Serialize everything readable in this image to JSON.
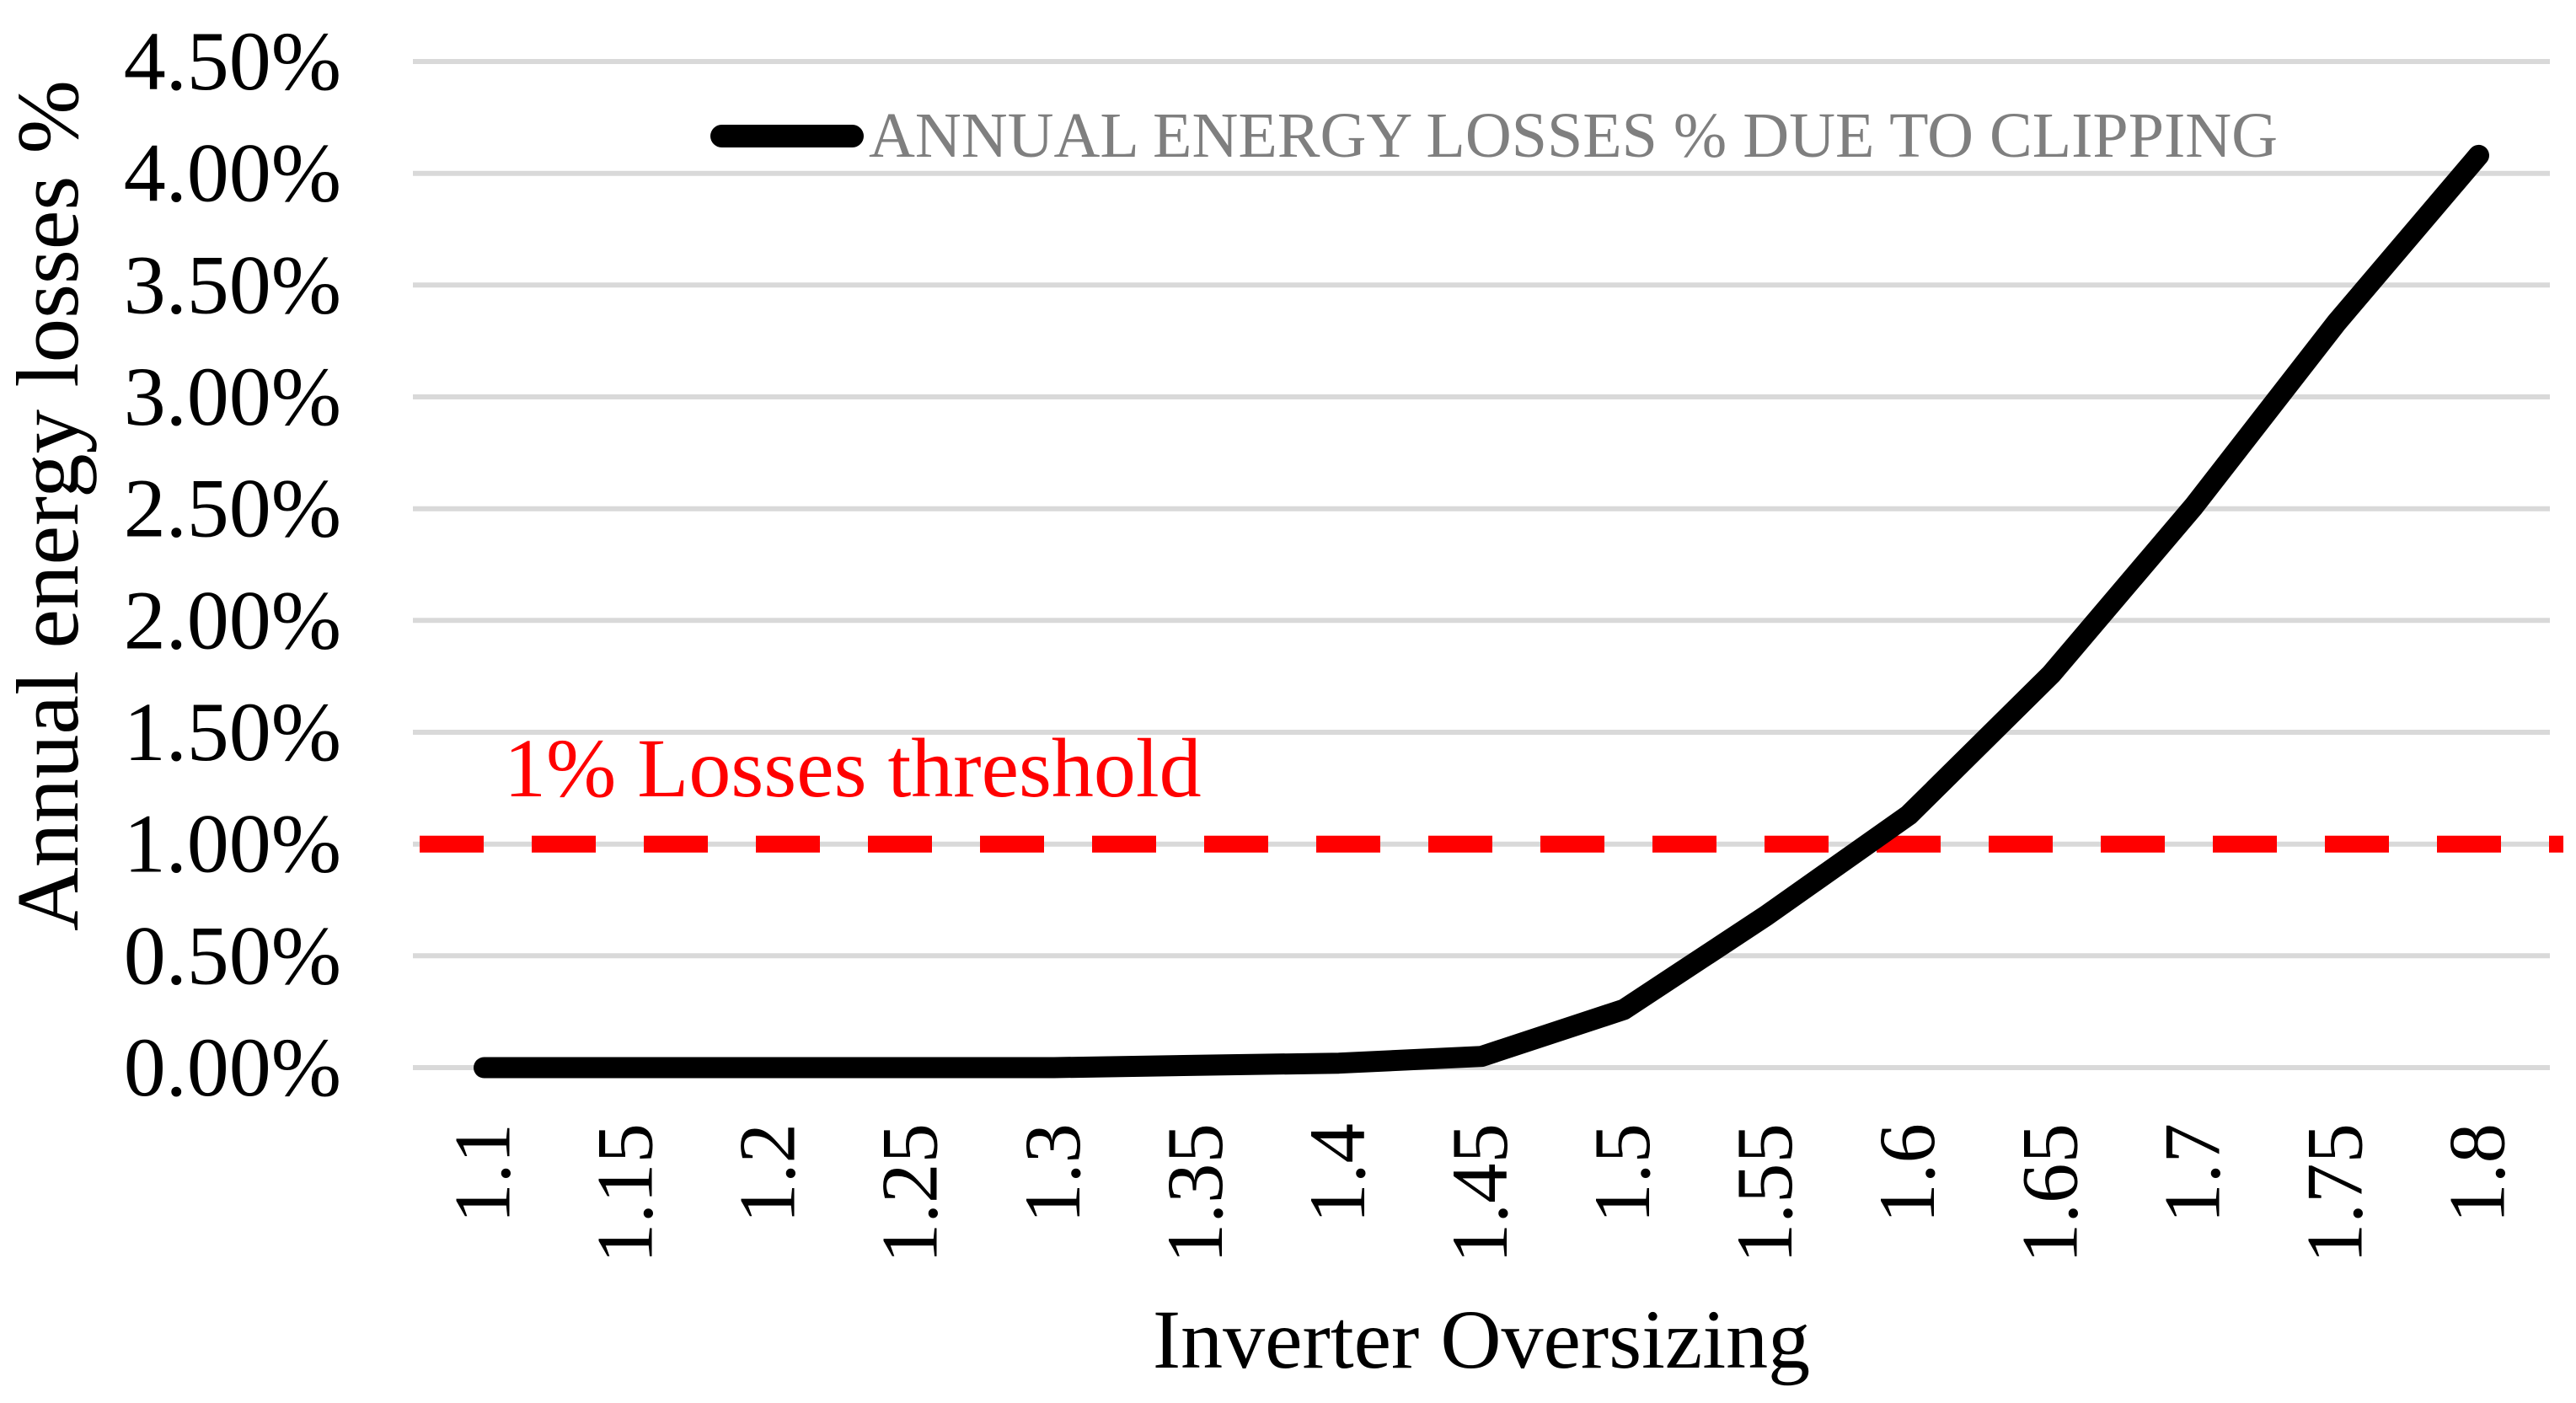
{
  "chart_data": {
    "type": "line",
    "title": "",
    "xlabel": "Inverter Oversizing",
    "ylabel": "Annual energy losses %",
    "categories": [
      "1.1",
      "1.15",
      "1.2",
      "1.25",
      "1.3",
      "1.35",
      "1.4",
      "1.45",
      "1.5",
      "1.55",
      "1.6",
      "1.65",
      "1.7",
      "1.75",
      "1.8"
    ],
    "series": [
      {
        "name": "ANNUAL ENERGY LOSSES % DUE TO CLIPPING",
        "color": "#000000",
        "values_pct": [
          0.0,
          0.0,
          0.0,
          0.0,
          0.0,
          0.01,
          0.02,
          0.05,
          0.26,
          0.68,
          1.13,
          1.76,
          2.51,
          3.33,
          4.08
        ]
      }
    ],
    "threshold_line": {
      "label": "1% Losses threshold",
      "value_pct": 1.0,
      "color": "#FF0000",
      "style": "dashed"
    },
    "y_ticks": [
      "0.00%",
      "0.50%",
      "1.00%",
      "1.50%",
      "2.00%",
      "2.50%",
      "3.00%",
      "3.50%",
      "4.00%",
      "4.50%"
    ],
    "y_tick_step_pct": 0.5,
    "ylim": [
      0,
      4.5
    ],
    "grid": "horizontal",
    "legend_position": "top-center",
    "colors": {
      "grid": "#D9D9D9",
      "axis_text": "#000000",
      "legend_text": "#7F7F7F",
      "background": "#FFFFFF"
    }
  }
}
